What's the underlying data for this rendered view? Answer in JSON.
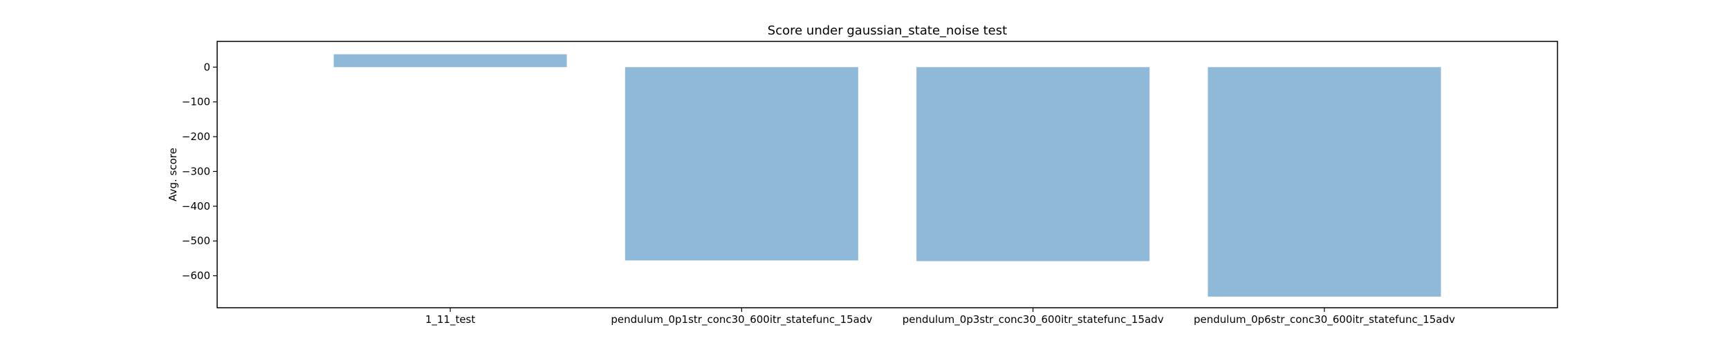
{
  "chart_data": {
    "type": "bar",
    "title": "Score under gaussian_state_noise test",
    "xlabel": "",
    "ylabel": "Avg. score",
    "categories": [
      "1_11_test",
      "pendulum_0p1str_conc30_600itr_statefunc_15adv",
      "pendulum_0p3str_conc30_600itr_statefunc_15adv",
      "pendulum_0p6str_conc30_600itr_statefunc_15adv"
    ],
    "values": [
      37,
      -556,
      -558,
      -660
    ],
    "ylim": [
      -692,
      74
    ],
    "yticks": [
      0,
      -100,
      -200,
      -300,
      -400,
      -500,
      -600
    ],
    "ytick_labels": [
      "0",
      "−100",
      "−200",
      "−300",
      "−400",
      "−500",
      "−600"
    ],
    "bar_color": "#8fb9d9",
    "grid": false,
    "legend": "none"
  }
}
